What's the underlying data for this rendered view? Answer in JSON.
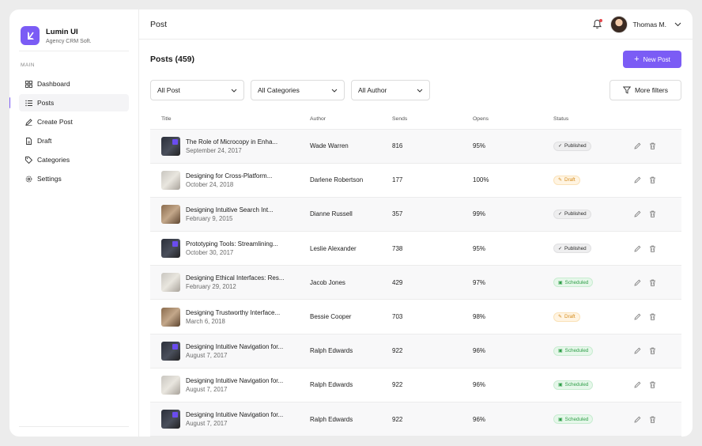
{
  "brand": {
    "name": "Lumin UI",
    "subtitle": "Agency CRM Soft.",
    "color": "#7b5cf5"
  },
  "sidebar": {
    "section_label": "MAIN",
    "items": [
      {
        "label": "Dashboard",
        "icon": "grid-icon",
        "active": false
      },
      {
        "label": "Posts",
        "icon": "list-icon",
        "active": true
      },
      {
        "label": "Create Post",
        "icon": "pencil-icon",
        "active": false
      },
      {
        "label": "Draft",
        "icon": "document-icon",
        "active": false
      },
      {
        "label": "Categories",
        "icon": "tag-icon",
        "active": false
      },
      {
        "label": "Settings",
        "icon": "gear-icon",
        "active": false
      }
    ]
  },
  "header": {
    "title": "Post",
    "user_name": "Thomas M."
  },
  "main": {
    "posts_count": "Posts (459)",
    "new_post_label": "New Post",
    "filters": {
      "post": "All Post",
      "categories": "All Categories",
      "author": "All Author",
      "more": "More filters"
    },
    "columns": {
      "title": "Title",
      "author": "Author",
      "sends": "Sends",
      "opens": "Opens",
      "status": "Status"
    },
    "rows": [
      {
        "title": "The Role of Microcopy in Enha...",
        "date": "September 24, 2017",
        "author": "Wade Warren",
        "sends": "816",
        "opens": "95%",
        "status": "Published",
        "thumb": "dark"
      },
      {
        "title": "Designing for Cross-Platform...",
        "date": "October 24, 2018",
        "author": "Darlene Robertson",
        "sends": "177",
        "opens": "100%",
        "status": "Draft",
        "thumb": "light"
      },
      {
        "title": "Designing Intuitive Search Int...",
        "date": "February 9, 2015",
        "author": "Dianne Russell",
        "sends": "357",
        "opens": "99%",
        "status": "Published",
        "thumb": "wood"
      },
      {
        "title": "Prototyping Tools: Streamlining...",
        "date": "October 30, 2017",
        "author": "Leslie Alexander",
        "sends": "738",
        "opens": "95%",
        "status": "Published",
        "thumb": "dark"
      },
      {
        "title": "Designing Ethical Interfaces: Res...",
        "date": "February 29, 2012",
        "author": "Jacob Jones",
        "sends": "429",
        "opens": "97%",
        "status": "Scheduled",
        "thumb": "light"
      },
      {
        "title": "Designing Trustworthy Interface...",
        "date": "March 6, 2018",
        "author": "Bessie Cooper",
        "sends": "703",
        "opens": "98%",
        "status": "Draft",
        "thumb": "wood"
      },
      {
        "title": "Designing Intuitive Navigation for...",
        "date": "August 7, 2017",
        "author": "Ralph Edwards",
        "sends": "922",
        "opens": "96%",
        "status": "Scheduled",
        "thumb": "dark"
      },
      {
        "title": "Designing Intuitive Navigation for...",
        "date": "August 7, 2017",
        "author": "Ralph Edwards",
        "sends": "922",
        "opens": "96%",
        "status": "Scheduled",
        "thumb": "light"
      },
      {
        "title": "Designing Intuitive Navigation for...",
        "date": "August 7, 2017",
        "author": "Ralph Edwards",
        "sends": "922",
        "opens": "96%",
        "status": "Scheduled",
        "thumb": "dark"
      }
    ]
  }
}
